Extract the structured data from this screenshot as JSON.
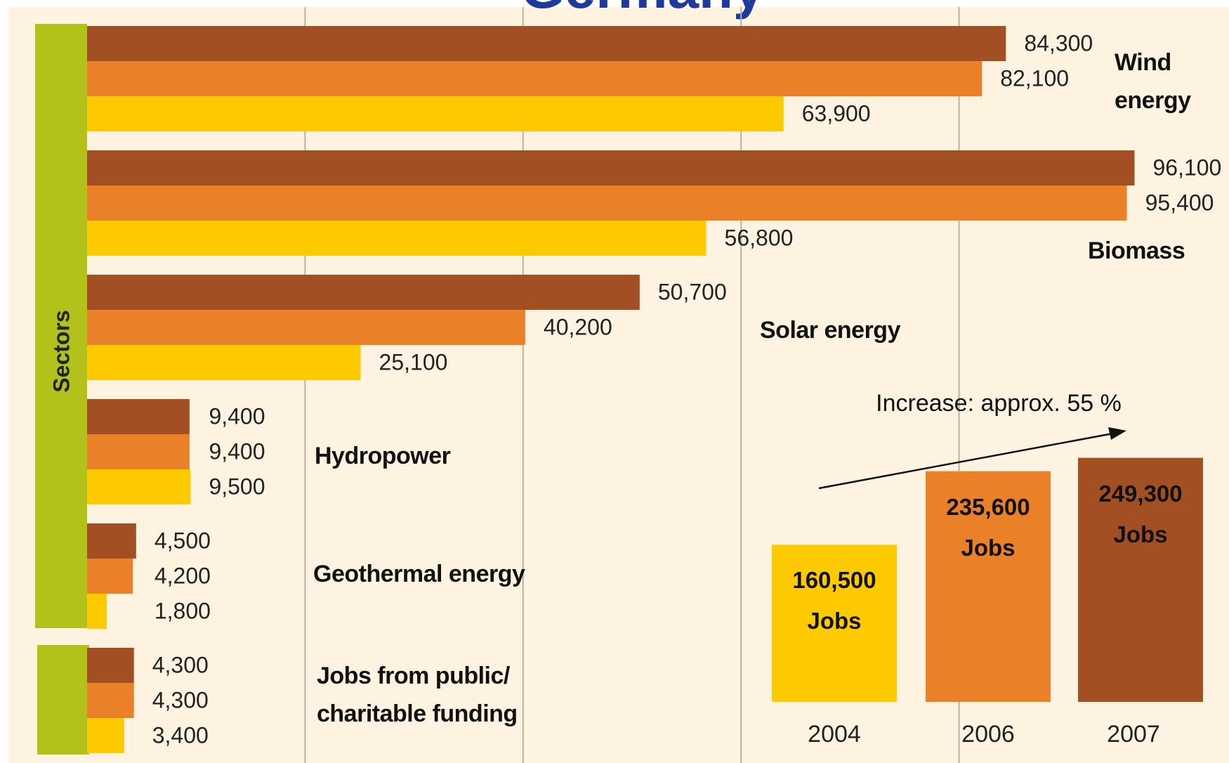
{
  "chart_data": [
    {
      "type": "bar",
      "orientation": "horizontal",
      "title": "Germany",
      "y_label": "Sectors",
      "categories": [
        "Wind energy",
        "Biomass",
        "Solar energy",
        "Hydropower",
        "Geothermal energy",
        "Jobs from public/ charitable funding"
      ],
      "series": [
        {
          "color": "#a34f24",
          "values": [
            84300,
            96100,
            50700,
            9400,
            4500,
            4300
          ],
          "value_labels": [
            "84,300",
            "96,100",
            "50,700",
            "9,400",
            "4,500",
            "4,300"
          ]
        },
        {
          "color": "#ea8129",
          "values": [
            82100,
            95400,
            40200,
            9400,
            4200,
            4300
          ],
          "value_labels": [
            "82,100",
            "95,400",
            "40,200",
            "9,400",
            "4,200",
            "4,300"
          ]
        },
        {
          "color": "#fdca00",
          "values": [
            63900,
            56800,
            25100,
            9500,
            1800,
            3400
          ],
          "value_labels": [
            "63,900",
            "56,800",
            "25,100",
            "9,500",
            "1,800",
            "3,400"
          ]
        }
      ],
      "xlim": [
        0,
        100000
      ],
      "xticks": [
        20000,
        40000,
        60000,
        80000
      ],
      "grid": true
    },
    {
      "type": "bar",
      "categories": [
        "2004",
        "2006",
        "2007"
      ],
      "values": [
        160500,
        235600,
        249300
      ],
      "value_labels": [
        "160,500 Jobs",
        "235,600 Jobs",
        "249,300 Jobs"
      ],
      "colors": [
        "#fdca00",
        "#ea8129",
        "#a34f24"
      ],
      "ylim": [
        0,
        300000
      ],
      "annotation": "Increase: approx. 55 %"
    }
  ]
}
